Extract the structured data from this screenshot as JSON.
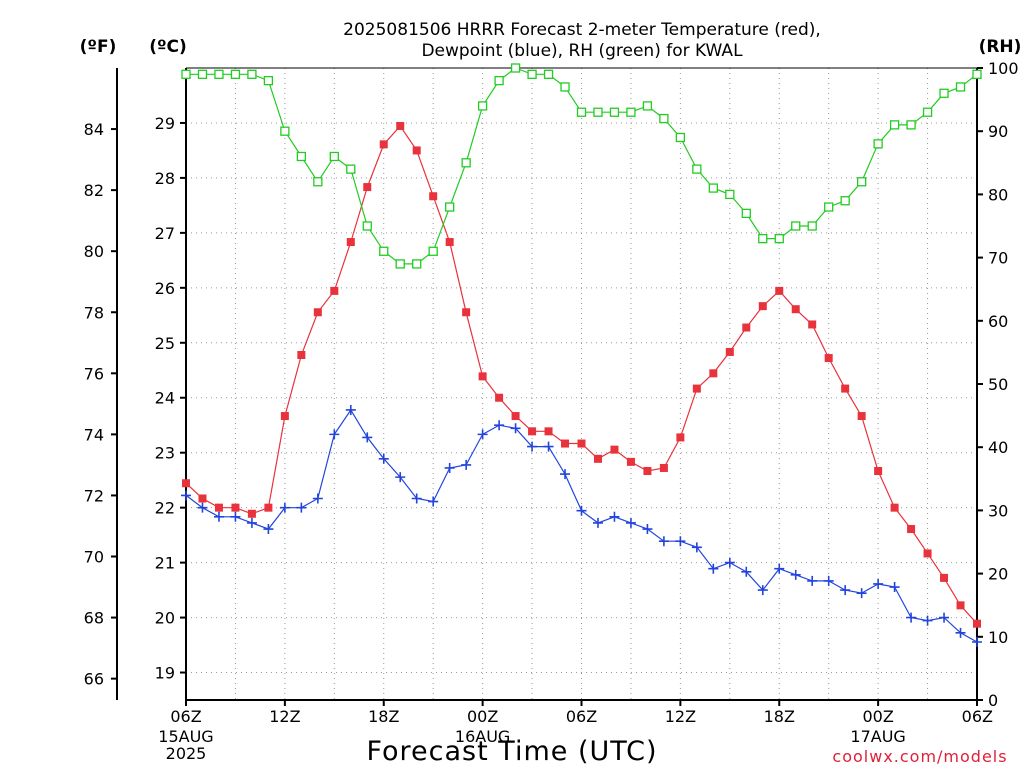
{
  "chart_data": {
    "type": "line",
    "title": [
      "2025081506 HRRR Forecast 2-meter Temperature (red),",
      "Dewpoint (blue), RH (green) for KWAL"
    ],
    "units": {
      "f": "(ºF)",
      "c": "(ºC)",
      "rh": "(RH)"
    },
    "xlabel": "Forecast Time (UTC)",
    "credit": "coolwx.com/models",
    "x_ticks": [
      {
        "h": 0,
        "label": "06Z",
        "sub": [
          "15AUG",
          "2025"
        ]
      },
      {
        "h": 6,
        "label": "12Z"
      },
      {
        "h": 12,
        "label": "18Z"
      },
      {
        "h": 18,
        "label": "00Z",
        "sub": [
          "16AUG"
        ]
      },
      {
        "h": 24,
        "label": "06Z"
      },
      {
        "h": 30,
        "label": "12Z"
      },
      {
        "h": 36,
        "label": "18Z"
      },
      {
        "h": 42,
        "label": "00Z",
        "sub": [
          "17AUG"
        ]
      },
      {
        "h": 48,
        "label": "06Z"
      }
    ],
    "xlim": [
      0,
      48
    ],
    "ylim_f": [
      65.3,
      86.0
    ],
    "ylim_rh": [
      0,
      100
    ],
    "f_ticks": [
      "66",
      "68",
      "70",
      "72",
      "74",
      "76",
      "78",
      "80",
      "82",
      "84"
    ],
    "c_ticks": [
      "19",
      "20",
      "21",
      "22",
      "23",
      "24",
      "25",
      "26",
      "27",
      "28",
      "29"
    ],
    "rh_ticks": [
      "0",
      "10",
      "20",
      "30",
      "40",
      "50",
      "60",
      "70",
      "80",
      "90",
      "100"
    ],
    "grid": true,
    "series": [
      {
        "name": "Temperature",
        "unit": "F",
        "color": "#e8323c",
        "marker": "filled-square",
        "values": [
          72.4,
          71.9,
          71.6,
          71.6,
          71.4,
          71.6,
          74.6,
          76.6,
          78.0,
          78.7,
          80.3,
          82.1,
          83.5,
          84.1,
          83.3,
          81.8,
          80.3,
          78.0,
          75.9,
          75.2,
          74.6,
          74.1,
          74.1,
          73.7,
          73.7,
          73.2,
          73.5,
          73.1,
          72.8,
          72.9,
          73.9,
          75.5,
          76.0,
          76.7,
          77.5,
          78.2,
          78.7,
          78.1,
          77.6,
          76.5,
          75.5,
          74.6,
          72.8,
          71.6,
          70.9,
          70.1,
          69.3,
          68.4,
          67.8
        ]
      },
      {
        "name": "Dewpoint",
        "unit": "F",
        "color": "#2244dd",
        "marker": "plus",
        "values": [
          72.0,
          71.6,
          71.3,
          71.3,
          71.1,
          70.9,
          71.6,
          71.6,
          71.9,
          74.0,
          74.8,
          73.9,
          73.2,
          72.6,
          71.9,
          71.8,
          72.9,
          73.0,
          74.0,
          74.3,
          74.2,
          73.6,
          73.6,
          72.7,
          71.5,
          71.1,
          71.3,
          71.1,
          70.9,
          70.5,
          70.5,
          70.3,
          69.6,
          69.8,
          69.5,
          68.9,
          69.6,
          69.4,
          69.2,
          69.2,
          68.9,
          68.8,
          69.1,
          69.0,
          68.0,
          67.9,
          68.0,
          67.5,
          67.2
        ]
      },
      {
        "name": "RH",
        "unit": "%",
        "color": "#22cc22",
        "marker": "open-square",
        "values": [
          99,
          99,
          99,
          99,
          99,
          98,
          90,
          86,
          82,
          86,
          84,
          75,
          71,
          69,
          69,
          71,
          78,
          85,
          94,
          98,
          100,
          99,
          99,
          97,
          93,
          93,
          93,
          93,
          94,
          92,
          89,
          84,
          81,
          80,
          77,
          73,
          73,
          75,
          75,
          78,
          79,
          82,
          88,
          91,
          91,
          93,
          96,
          97,
          99
        ]
      }
    ]
  }
}
